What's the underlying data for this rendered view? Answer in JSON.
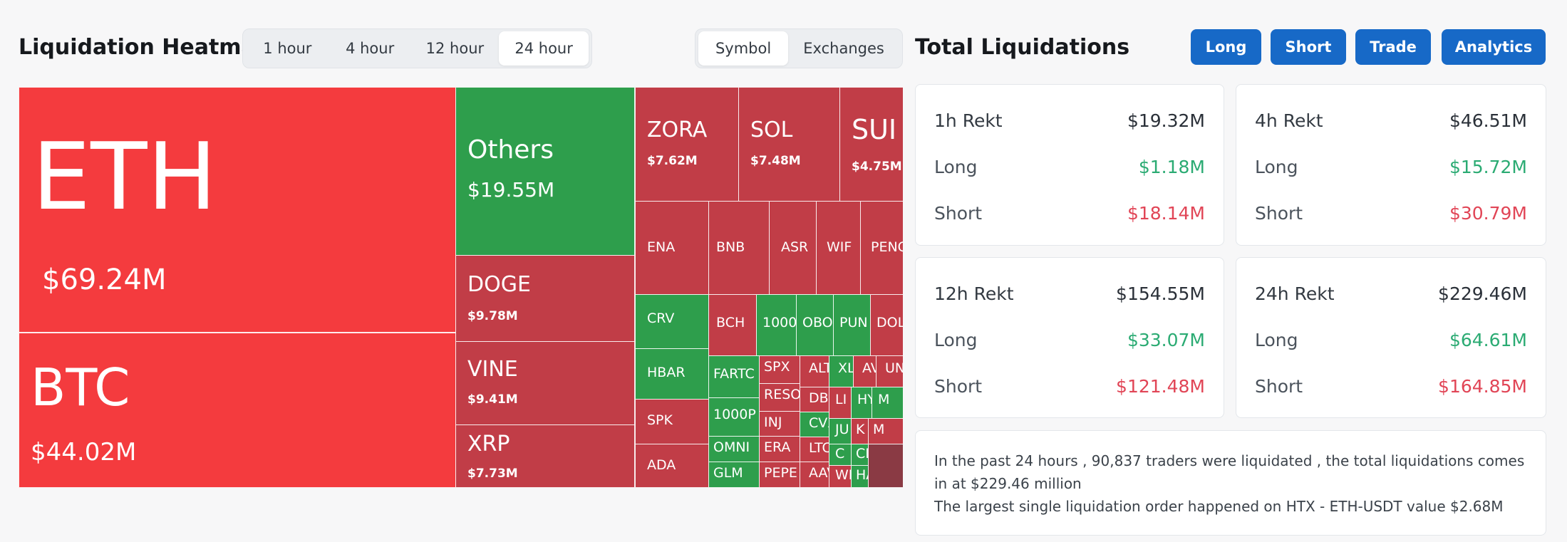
{
  "heatmap": {
    "title": "Liquidation Heatmap",
    "timeframes": [
      "1 hour",
      "4 hour",
      "12 hour",
      "24 hour"
    ],
    "active_timeframe": "24 hour",
    "groupings": [
      "Symbol",
      "Exchanges"
    ],
    "active_grouping": "Symbol",
    "tiles": [
      {
        "symbol": "ETH",
        "value": "$69.24M",
        "color": "#f43b3e"
      },
      {
        "symbol": "BTC",
        "value": "$44.02M",
        "color": "#f43b3e"
      },
      {
        "symbol": "Others",
        "value": "$19.55M",
        "color": "#2e9e4c"
      },
      {
        "symbol": "DOGE",
        "value": "$9.78M",
        "color": "#c13d47"
      },
      {
        "symbol": "VINE",
        "value": "$9.41M",
        "color": "#c13d47"
      },
      {
        "symbol": "XRP",
        "value": "$7.73M",
        "color": "#c13d47"
      },
      {
        "symbol": "ZORA",
        "value": "$7.62M",
        "color": "#c13d47"
      },
      {
        "symbol": "SOL",
        "value": "$7.48M",
        "color": "#c13d47"
      },
      {
        "symbol": "SUI",
        "value": "$4.75M",
        "color": "#c13d47"
      },
      {
        "symbol": "ENA",
        "value": "",
        "color": "#c13d47"
      },
      {
        "symbol": "BNB",
        "value": "",
        "color": "#c13d47"
      },
      {
        "symbol": "ASR",
        "value": "",
        "color": "#c13d47"
      },
      {
        "symbol": "WIF",
        "value": "",
        "color": "#c13d47"
      },
      {
        "symbol": "PENG",
        "value": "",
        "color": "#c13d47"
      },
      {
        "symbol": "CRV",
        "value": "",
        "color": "#2e9e4c"
      },
      {
        "symbol": "HBAR",
        "value": "",
        "color": "#2e9e4c"
      },
      {
        "symbol": "SPK",
        "value": "",
        "color": "#c13d47"
      },
      {
        "symbol": "ADA",
        "value": "",
        "color": "#c13d47"
      },
      {
        "symbol": "BCH",
        "value": "",
        "color": "#c13d47"
      },
      {
        "symbol": "1000",
        "value": "",
        "color": "#2e9e4c"
      },
      {
        "symbol": "OBO",
        "value": "",
        "color": "#2e9e4c"
      },
      {
        "symbol": "PUN",
        "value": "",
        "color": "#2e9e4c"
      },
      {
        "symbol": "DOL",
        "value": "",
        "color": "#c13d47"
      },
      {
        "symbol": "FARTC",
        "value": "",
        "color": "#2e9e4c"
      },
      {
        "symbol": "1000P",
        "value": "",
        "color": "#2e9e4c"
      },
      {
        "symbol": "OMNI",
        "value": "",
        "color": "#2e9e4c"
      },
      {
        "symbol": "GLM",
        "value": "",
        "color": "#2e9e4c"
      },
      {
        "symbol": "SPX",
        "value": "",
        "color": "#c13d47"
      },
      {
        "symbol": "RESO",
        "value": "",
        "color": "#c13d47"
      },
      {
        "symbol": "INJ",
        "value": "",
        "color": "#c13d47"
      },
      {
        "symbol": "ERA",
        "value": "",
        "color": "#c13d47"
      },
      {
        "symbol": "PEPE",
        "value": "",
        "color": "#c13d47"
      },
      {
        "symbol": "ALT",
        "value": "",
        "color": "#c13d47"
      },
      {
        "symbol": "DBF",
        "value": "",
        "color": "#c13d47"
      },
      {
        "symbol": "CVX",
        "value": "",
        "color": "#2e9e4c"
      },
      {
        "symbol": "LTC",
        "value": "",
        "color": "#c13d47"
      },
      {
        "symbol": "AAV",
        "value": "",
        "color": "#c13d47"
      },
      {
        "symbol": "XL",
        "value": "",
        "color": "#2e9e4c"
      },
      {
        "symbol": "AV",
        "value": "",
        "color": "#c13d47"
      },
      {
        "symbol": "UN",
        "value": "",
        "color": "#c13d47"
      },
      {
        "symbol": "LI",
        "value": "",
        "color": "#c13d47"
      },
      {
        "symbol": "HY",
        "value": "",
        "color": "#2e9e4c"
      },
      {
        "symbol": "M",
        "value": "",
        "color": "#2e9e4c"
      },
      {
        "symbol": "JU",
        "value": "",
        "color": "#2e9e4c"
      },
      {
        "symbol": "K",
        "value": "",
        "color": "#c13d47"
      },
      {
        "symbol": "M",
        "value": "",
        "color": "#c13d47"
      },
      {
        "symbol": "C",
        "value": "",
        "color": "#2e9e4c"
      },
      {
        "symbol": "CF",
        "value": "",
        "color": "#2e9e4c"
      },
      {
        "symbol": "WL",
        "value": "",
        "color": "#c13d47"
      },
      {
        "symbol": "HA",
        "value": "",
        "color": "#2e9e4c"
      },
      {
        "symbol": "",
        "value": "",
        "color": "#8a3a44"
      }
    ]
  },
  "total": {
    "title": "Total Liquidations",
    "buttons": [
      "Long",
      "Short",
      "Trade",
      "Analytics"
    ],
    "accent": "#1769c7",
    "long_color": "#2bab73",
    "short_color": "#e14556",
    "cards": [
      {
        "label": "1h Rekt",
        "total": "$19.32M",
        "long_label": "Long",
        "long": "$1.18M",
        "short_label": "Short",
        "short": "$18.14M"
      },
      {
        "label": "4h Rekt",
        "total": "$46.51M",
        "long_label": "Long",
        "long": "$15.72M",
        "short_label": "Short",
        "short": "$30.79M"
      },
      {
        "label": "12h Rekt",
        "total": "$154.55M",
        "long_label": "Long",
        "long": "$33.07M",
        "short_label": "Short",
        "short": "$121.48M"
      },
      {
        "label": "24h Rekt",
        "total": "$229.46M",
        "long_label": "Long",
        "long": "$64.61M",
        "short_label": "Short",
        "short": "$164.85M"
      }
    ],
    "summary_line1": "In the past 24 hours , 90,837 traders were liquidated , the total liquidations comes in at $229.46 million",
    "summary_line2": "The largest single liquidation order happened on HTX - ETH-USDT value $2.68M"
  }
}
